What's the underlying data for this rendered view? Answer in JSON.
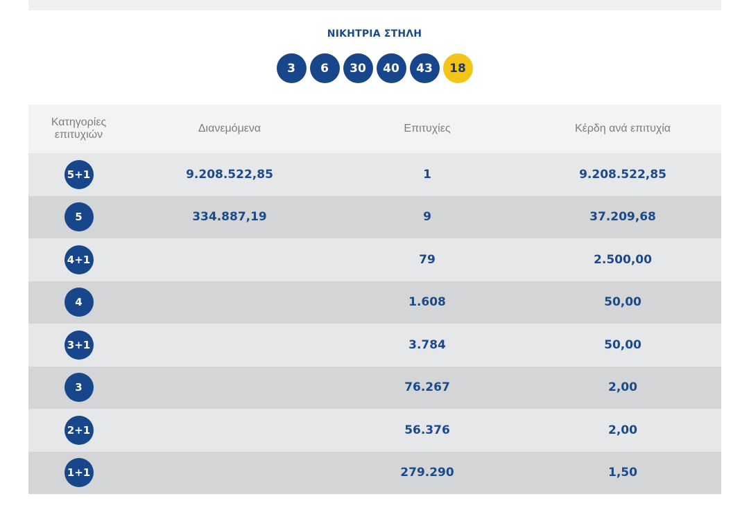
{
  "winning": {
    "title": "ΝΙΚΗΤΡΙΑ ΣΤΗΛΗ",
    "numbers": [
      "3",
      "6",
      "30",
      "40",
      "43"
    ],
    "bonus": "18"
  },
  "table": {
    "headers": {
      "category": "Κατηγορίες επιτυχιών",
      "distributed": "Διανεμόμενα",
      "winners": "Επιτυχίες",
      "prize": "Κέρδη ανά επιτυχία"
    },
    "rows": [
      {
        "category": "5+1",
        "distributed": "9.208.522,85",
        "winners": "1",
        "prize": "9.208.522,85"
      },
      {
        "category": "5",
        "distributed": "334.887,19",
        "winners": "9",
        "prize": "37.209,68"
      },
      {
        "category": "4+1",
        "distributed": "",
        "winners": "79",
        "prize": "2.500,00"
      },
      {
        "category": "4",
        "distributed": "",
        "winners": "1.608",
        "prize": "50,00"
      },
      {
        "category": "3+1",
        "distributed": "",
        "winners": "3.784",
        "prize": "50,00"
      },
      {
        "category": "3",
        "distributed": "",
        "winners": "76.267",
        "prize": "2,00"
      },
      {
        "category": "2+1",
        "distributed": "",
        "winners": "56.376",
        "prize": "2,00"
      },
      {
        "category": "1+1",
        "distributed": "",
        "winners": "279.290",
        "prize": "1,50"
      }
    ]
  },
  "colors": {
    "ball": "#17468a",
    "bonus_ball": "#f5c418",
    "text_blue": "#1b4a8a",
    "row_light": "#e6e7e8",
    "row_dark": "#d4d5d7"
  }
}
